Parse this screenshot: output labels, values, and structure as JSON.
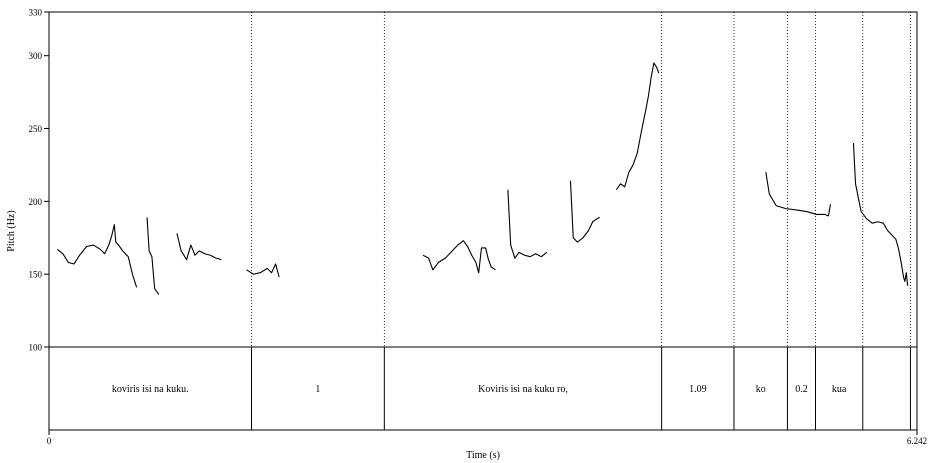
{
  "chart_data": {
    "type": "line",
    "xlabel": "Time (s)",
    "ylabel": "Pitch (Hz)",
    "xlim": [
      0,
      6.242
    ],
    "ylim": [
      100,
      330
    ],
    "x_tick_labels": [
      "0",
      "6.242"
    ],
    "y_ticks": [
      100,
      150,
      200,
      250,
      300,
      330
    ],
    "grid": false,
    "legend": "none",
    "line_color": "#000000",
    "series": [
      {
        "values": [
          [
            0.06,
            167
          ],
          [
            0.1,
            164
          ],
          [
            0.14,
            158
          ],
          [
            0.18,
            157
          ],
          [
            0.22,
            163
          ],
          [
            0.27,
            169
          ],
          [
            0.32,
            170
          ],
          [
            0.37,
            167
          ],
          [
            0.4,
            164
          ],
          [
            0.43,
            170
          ],
          [
            0.45,
            176
          ],
          [
            0.47,
            184
          ],
          [
            0.48,
            172
          ],
          [
            0.5,
            170
          ],
          [
            0.53,
            166
          ],
          [
            0.57,
            162
          ],
          [
            0.6,
            150
          ],
          [
            0.63,
            141
          ]
        ]
      },
      {
        "values": [
          [
            0.705,
            189
          ],
          [
            0.72,
            166
          ],
          [
            0.74,
            162
          ],
          [
            0.76,
            140
          ],
          [
            0.79,
            136
          ]
        ]
      },
      {
        "values": [
          [
            0.92,
            178
          ],
          [
            0.95,
            166
          ],
          [
            0.99,
            160
          ],
          [
            1.02,
            170
          ],
          [
            1.05,
            163
          ],
          [
            1.08,
            166
          ],
          [
            1.12,
            164
          ],
          [
            1.16,
            163
          ],
          [
            1.2,
            161
          ],
          [
            1.24,
            160
          ]
        ]
      },
      {
        "values": [
          [
            1.42,
            153
          ],
          [
            1.47,
            150
          ],
          [
            1.52,
            151
          ],
          [
            1.57,
            154
          ],
          [
            1.6,
            151
          ],
          [
            1.63,
            157
          ],
          [
            1.655,
            148
          ]
        ]
      },
      {
        "values": [
          [
            2.69,
            163
          ],
          [
            2.73,
            161
          ],
          [
            2.76,
            153
          ],
          [
            2.8,
            158
          ],
          [
            2.85,
            161
          ],
          [
            2.9,
            166
          ],
          [
            2.94,
            170
          ],
          [
            2.98,
            173
          ],
          [
            3.01,
            169
          ],
          [
            3.04,
            163
          ],
          [
            3.07,
            158
          ],
          [
            3.09,
            151
          ],
          [
            3.11,
            168
          ],
          [
            3.14,
            168
          ],
          [
            3.16,
            160
          ],
          [
            3.18,
            155
          ],
          [
            3.21,
            153
          ]
        ]
      },
      {
        "values": [
          [
            3.3,
            208
          ],
          [
            3.32,
            170
          ],
          [
            3.35,
            161
          ],
          [
            3.38,
            165
          ],
          [
            3.42,
            163
          ],
          [
            3.46,
            162
          ],
          [
            3.5,
            164
          ],
          [
            3.54,
            162
          ],
          [
            3.58,
            165
          ]
        ]
      },
      {
        "values": [
          [
            3.75,
            214
          ],
          [
            3.77,
            175
          ],
          [
            3.8,
            172
          ],
          [
            3.84,
            175
          ],
          [
            3.88,
            180
          ],
          [
            3.91,
            186
          ],
          [
            3.94,
            188
          ],
          [
            3.96,
            189
          ]
        ]
      },
      {
        "values": [
          [
            4.08,
            208
          ],
          [
            4.11,
            212
          ],
          [
            4.14,
            210
          ],
          [
            4.17,
            220
          ],
          [
            4.2,
            225
          ],
          [
            4.23,
            233
          ],
          [
            4.26,
            248
          ],
          [
            4.29,
            262
          ],
          [
            4.31,
            272
          ],
          [
            4.33,
            285
          ],
          [
            4.35,
            295
          ],
          [
            4.37,
            292
          ],
          [
            4.385,
            288
          ]
        ]
      },
      {
        "values": [
          [
            5.155,
            220
          ],
          [
            5.18,
            205
          ],
          [
            5.23,
            197
          ],
          [
            5.3,
            195
          ],
          [
            5.38,
            194
          ],
          [
            5.45,
            193
          ],
          [
            5.52,
            191
          ],
          [
            5.58,
            191
          ],
          [
            5.605,
            190
          ],
          [
            5.62,
            198
          ]
        ]
      },
      {
        "values": [
          [
            5.785,
            240
          ],
          [
            5.8,
            212
          ],
          [
            5.84,
            193
          ],
          [
            5.88,
            188
          ],
          [
            5.92,
            185
          ],
          [
            5.96,
            186
          ],
          [
            6.0,
            185
          ],
          [
            6.03,
            180
          ],
          [
            6.06,
            177
          ],
          [
            6.09,
            174
          ],
          [
            6.11,
            167
          ],
          [
            6.13,
            157
          ],
          [
            6.145,
            148
          ],
          [
            6.155,
            145
          ],
          [
            6.165,
            151
          ],
          [
            6.175,
            142
          ]
        ]
      }
    ]
  },
  "textgrid": {
    "boundaries": [
      1.4565,
      2.4114,
      4.4058,
      4.9258,
      5.3102,
      5.5122,
      5.8521,
      6.1949
    ],
    "intervals": [
      {
        "start": 0,
        "end": 1.4565,
        "label": "koviris isi na kuku."
      },
      {
        "start": 1.4565,
        "end": 2.4114,
        "label": "1"
      },
      {
        "start": 2.4114,
        "end": 4.4058,
        "label": "Koviris isi na kuku ro,"
      },
      {
        "start": 4.4058,
        "end": 4.9258,
        "label": "1.09"
      },
      {
        "start": 4.9258,
        "end": 5.3102,
        "label": "ko"
      },
      {
        "start": 5.3102,
        "end": 5.5122,
        "label": "0.2"
      },
      {
        "start": 5.5122,
        "end": 5.8521,
        "label": "kua"
      },
      {
        "start": 5.8521,
        "end": 6.1949,
        "label": ""
      },
      {
        "start": 6.1949,
        "end": 6.242,
        "label": ""
      }
    ]
  }
}
